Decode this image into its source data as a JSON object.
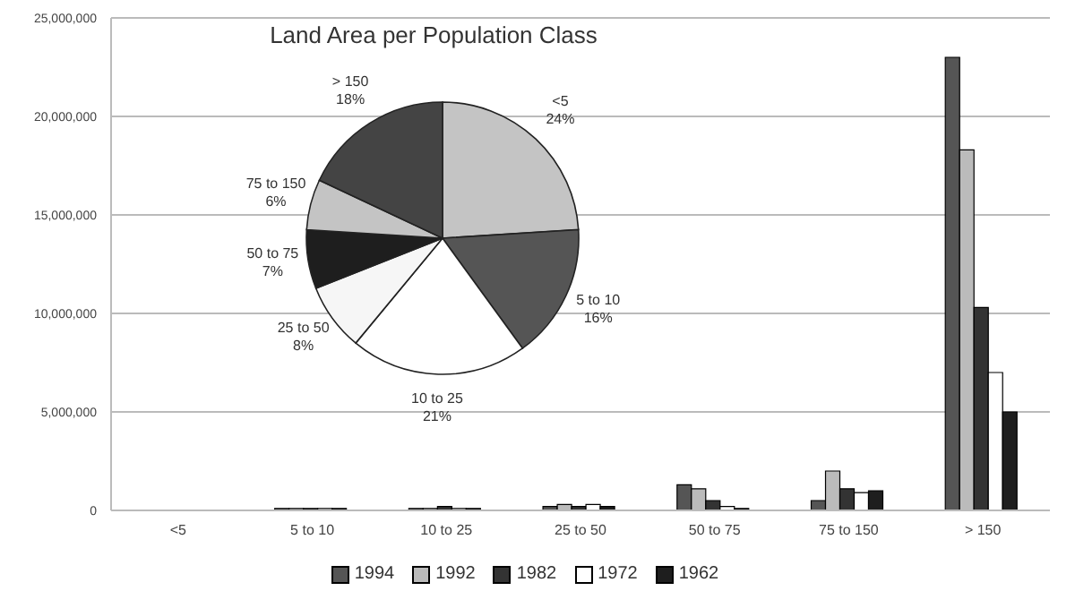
{
  "chart_data": [
    {
      "type": "bar",
      "categories": [
        "<5",
        "5 to 10",
        "10 to 25",
        "25 to 50",
        "50 to 75",
        "75 to 150",
        "> 150"
      ],
      "series": [
        {
          "name": "1994",
          "color": "#555555",
          "values": [
            0,
            100000,
            100000,
            200000,
            1300000,
            500000,
            23000000
          ]
        },
        {
          "name": "1992",
          "color": "#bbbbbb",
          "values": [
            0,
            100000,
            100000,
            300000,
            1100000,
            2000000,
            18300000
          ]
        },
        {
          "name": "1982",
          "color": "#333333",
          "values": [
            0,
            100000,
            200000,
            200000,
            500000,
            1100000,
            10300000
          ]
        },
        {
          "name": "1972",
          "color": "#ffffff",
          "values": [
            0,
            100000,
            100000,
            300000,
            200000,
            900000,
            7000000
          ]
        },
        {
          "name": "1962",
          "color": "#1e1e1e",
          "values": [
            0,
            100000,
            100000,
            200000,
            100000,
            1000000,
            5000000
          ]
        }
      ],
      "ylim": [
        0,
        25000000
      ],
      "yticks": [
        {
          "value": 0,
          "label": "0"
        },
        {
          "value": 5000000,
          "label": "5,000,000"
        },
        {
          "value": 10000000,
          "label": "10,000,000"
        },
        {
          "value": 15000000,
          "label": "15,000,000"
        },
        {
          "value": 20000000,
          "label": "20,000,000"
        },
        {
          "value": 25000000,
          "label": "25,000,000"
        }
      ],
      "grid": "y",
      "legend": "bottom"
    },
    {
      "type": "pie",
      "title": "Land Area per Population Class",
      "categories": [
        "<5",
        "5 to 10",
        "10 to 25",
        "25 to 50",
        "50 to 75",
        "75 to 150",
        "> 150"
      ],
      "values": [
        24,
        16,
        21,
        8,
        7,
        6,
        18
      ],
      "colors": [
        "#c4c4c4",
        "#555555",
        "#ffffff",
        "#f6f6f6",
        "#1e1e1e",
        "#c4c4c4",
        "#444444"
      ],
      "value_labels": [
        "24%",
        "16%",
        "21%",
        "8%",
        "7%",
        "6%",
        "18%"
      ]
    }
  ]
}
